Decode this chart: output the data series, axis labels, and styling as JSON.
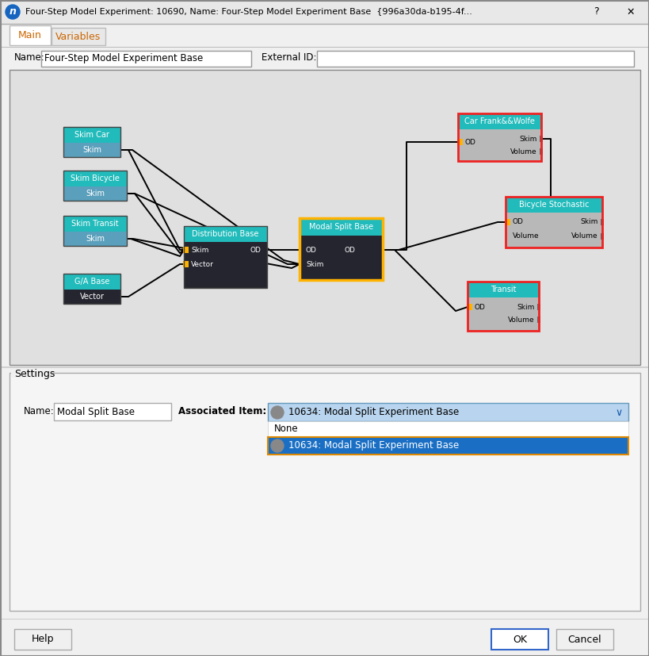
{
  "bg": "#f0f0f0",
  "white": "#ffffff",
  "canvas_bg": "#e2e2e2",
  "grid_color": "#cccccc",
  "teal": "#00b2b2",
  "teal_light": "#4ec9c9",
  "dark_node": "#1e1e2e",
  "gray_port": "#b8b8b8",
  "yellow": "#ffb300",
  "red_border": "#ee2222",
  "blue_sel": "#1a6fc4",
  "blue_drop": "#b8d8f0",
  "blue_drop_border": "#5599cc",
  "orange_dot_border": "#cc7700",
  "title_text": "Four-Step Model Experiment: 10690, Name: Four-Step Model Experiment Base  {996a30da-b195-4f...     ?     X",
  "name_field_value": "Four-Step Model Experiment Base",
  "settings_name_value": "Modal Split Base",
  "dropdown_text": "10634: Modal Split Experiment Base",
  "none_text": "None"
}
